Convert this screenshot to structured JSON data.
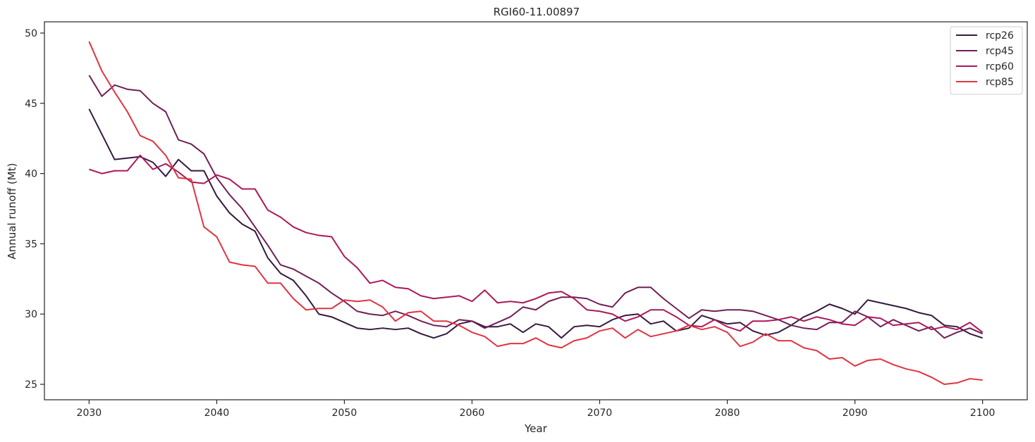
{
  "chart_data": {
    "type": "line",
    "title": "RGI60-11.00897",
    "xlabel": "Year",
    "ylabel": "Annual runoff (Mt)",
    "xlim": [
      2026.5,
      2103.5
    ],
    "ylim": [
      23.9,
      50.8
    ],
    "xticks": [
      2030,
      2040,
      2050,
      2060,
      2070,
      2080,
      2090,
      2100
    ],
    "yticks": [
      25,
      30,
      35,
      40,
      45,
      50
    ],
    "grid": false,
    "legend_position": "top-right",
    "x": [
      2030,
      2031,
      2032,
      2033,
      2034,
      2035,
      2036,
      2037,
      2038,
      2039,
      2040,
      2041,
      2042,
      2043,
      2044,
      2045,
      2046,
      2047,
      2048,
      2049,
      2050,
      2051,
      2052,
      2053,
      2054,
      2055,
      2056,
      2057,
      2058,
      2059,
      2060,
      2061,
      2062,
      2063,
      2064,
      2065,
      2066,
      2067,
      2068,
      2069,
      2070,
      2071,
      2072,
      2073,
      2074,
      2075,
      2076,
      2077,
      2078,
      2079,
      2080,
      2081,
      2082,
      2083,
      2084,
      2085,
      2086,
      2087,
      2088,
      2089,
      2090,
      2091,
      2092,
      2093,
      2094,
      2095,
      2096,
      2097,
      2098,
      2099,
      2100
    ],
    "series": [
      {
        "name": "rcp26",
        "color": "#35193e",
        "values": [
          44.6,
          42.8,
          41.0,
          41.1,
          41.2,
          40.8,
          39.8,
          41.0,
          40.2,
          40.2,
          38.4,
          37.2,
          36.4,
          35.9,
          34.0,
          32.9,
          32.4,
          31.3,
          30.0,
          29.8,
          29.4,
          29.0,
          28.9,
          29.0,
          28.9,
          29.0,
          28.6,
          28.3,
          28.6,
          29.3,
          29.5,
          29.1,
          29.1,
          29.3,
          28.7,
          29.3,
          29.1,
          28.3,
          29.1,
          29.2,
          29.1,
          29.6,
          29.9,
          30.0,
          29.3,
          29.5,
          28.8,
          29.0,
          29.9,
          29.6,
          29.3,
          29.4,
          28.8,
          28.5,
          28.7,
          29.2,
          29.8,
          30.2,
          30.7,
          30.4,
          30.0,
          31.0,
          30.8,
          30.6,
          30.4,
          30.1,
          29.9,
          29.2,
          29.1,
          28.6,
          28.3
        ]
      },
      {
        "name": "rcp45",
        "color": "#701f57",
        "values": [
          47.0,
          45.5,
          46.3,
          46.0,
          45.9,
          45.0,
          44.4,
          42.4,
          42.1,
          41.4,
          39.7,
          38.5,
          37.5,
          36.2,
          34.9,
          33.5,
          33.2,
          32.7,
          32.2,
          31.5,
          30.9,
          30.2,
          30.0,
          29.9,
          30.2,
          29.9,
          29.5,
          29.2,
          29.1,
          29.6,
          29.5,
          29.0,
          29.4,
          29.8,
          30.5,
          30.3,
          30.9,
          31.2,
          31.2,
          31.1,
          30.7,
          30.5,
          31.5,
          31.9,
          31.9,
          31.1,
          30.4,
          29.7,
          30.3,
          30.2,
          30.3,
          30.3,
          30.2,
          29.9,
          29.6,
          29.2,
          29.0,
          28.9,
          29.4,
          29.4,
          30.2,
          29.8,
          29.1,
          29.6,
          29.2,
          28.8,
          29.1,
          28.3,
          28.7,
          29.0,
          28.6
        ]
      },
      {
        "name": "rcp60",
        "color": "#ad1759",
        "values": [
          40.3,
          40.0,
          40.2,
          40.2,
          41.3,
          40.3,
          40.7,
          40.1,
          39.4,
          39.3,
          39.9,
          39.6,
          38.9,
          38.9,
          37.4,
          36.9,
          36.2,
          35.8,
          35.6,
          35.5,
          34.1,
          33.3,
          32.2,
          32.4,
          31.9,
          31.8,
          31.3,
          31.1,
          31.2,
          31.3,
          30.9,
          31.7,
          30.8,
          30.9,
          30.8,
          31.1,
          31.5,
          31.6,
          31.1,
          30.3,
          30.2,
          30.0,
          29.5,
          29.8,
          30.3,
          30.3,
          29.8,
          29.2,
          29.1,
          29.6,
          29.1,
          28.8,
          29.5,
          29.5,
          29.6,
          29.8,
          29.5,
          29.8,
          29.6,
          29.3,
          29.2,
          29.8,
          29.7,
          29.2,
          29.3,
          29.4,
          28.9,
          29.1,
          28.9,
          29.4,
          28.7
        ]
      },
      {
        "name": "rcp85",
        "color": "#e13342",
        "values": [
          49.4,
          47.3,
          45.8,
          44.4,
          42.7,
          42.3,
          41.3,
          39.7,
          39.6,
          36.2,
          35.5,
          33.7,
          33.5,
          33.4,
          32.2,
          32.2,
          31.1,
          30.3,
          30.4,
          30.4,
          31.0,
          30.9,
          31.0,
          30.5,
          29.5,
          30.1,
          30.2,
          29.5,
          29.5,
          29.2,
          28.7,
          28.4,
          27.7,
          27.9,
          27.9,
          28.3,
          27.8,
          27.6,
          28.1,
          28.3,
          28.8,
          29.0,
          28.3,
          28.9,
          28.4,
          28.6,
          28.8,
          29.2,
          28.9,
          29.1,
          28.7,
          27.7,
          28.0,
          28.6,
          28.1,
          28.1,
          27.6,
          27.4,
          26.8,
          26.9,
          26.3,
          26.7,
          26.8,
          26.4,
          26.1,
          25.9,
          25.5,
          25.0,
          25.1,
          25.4,
          25.3
        ]
      }
    ]
  }
}
